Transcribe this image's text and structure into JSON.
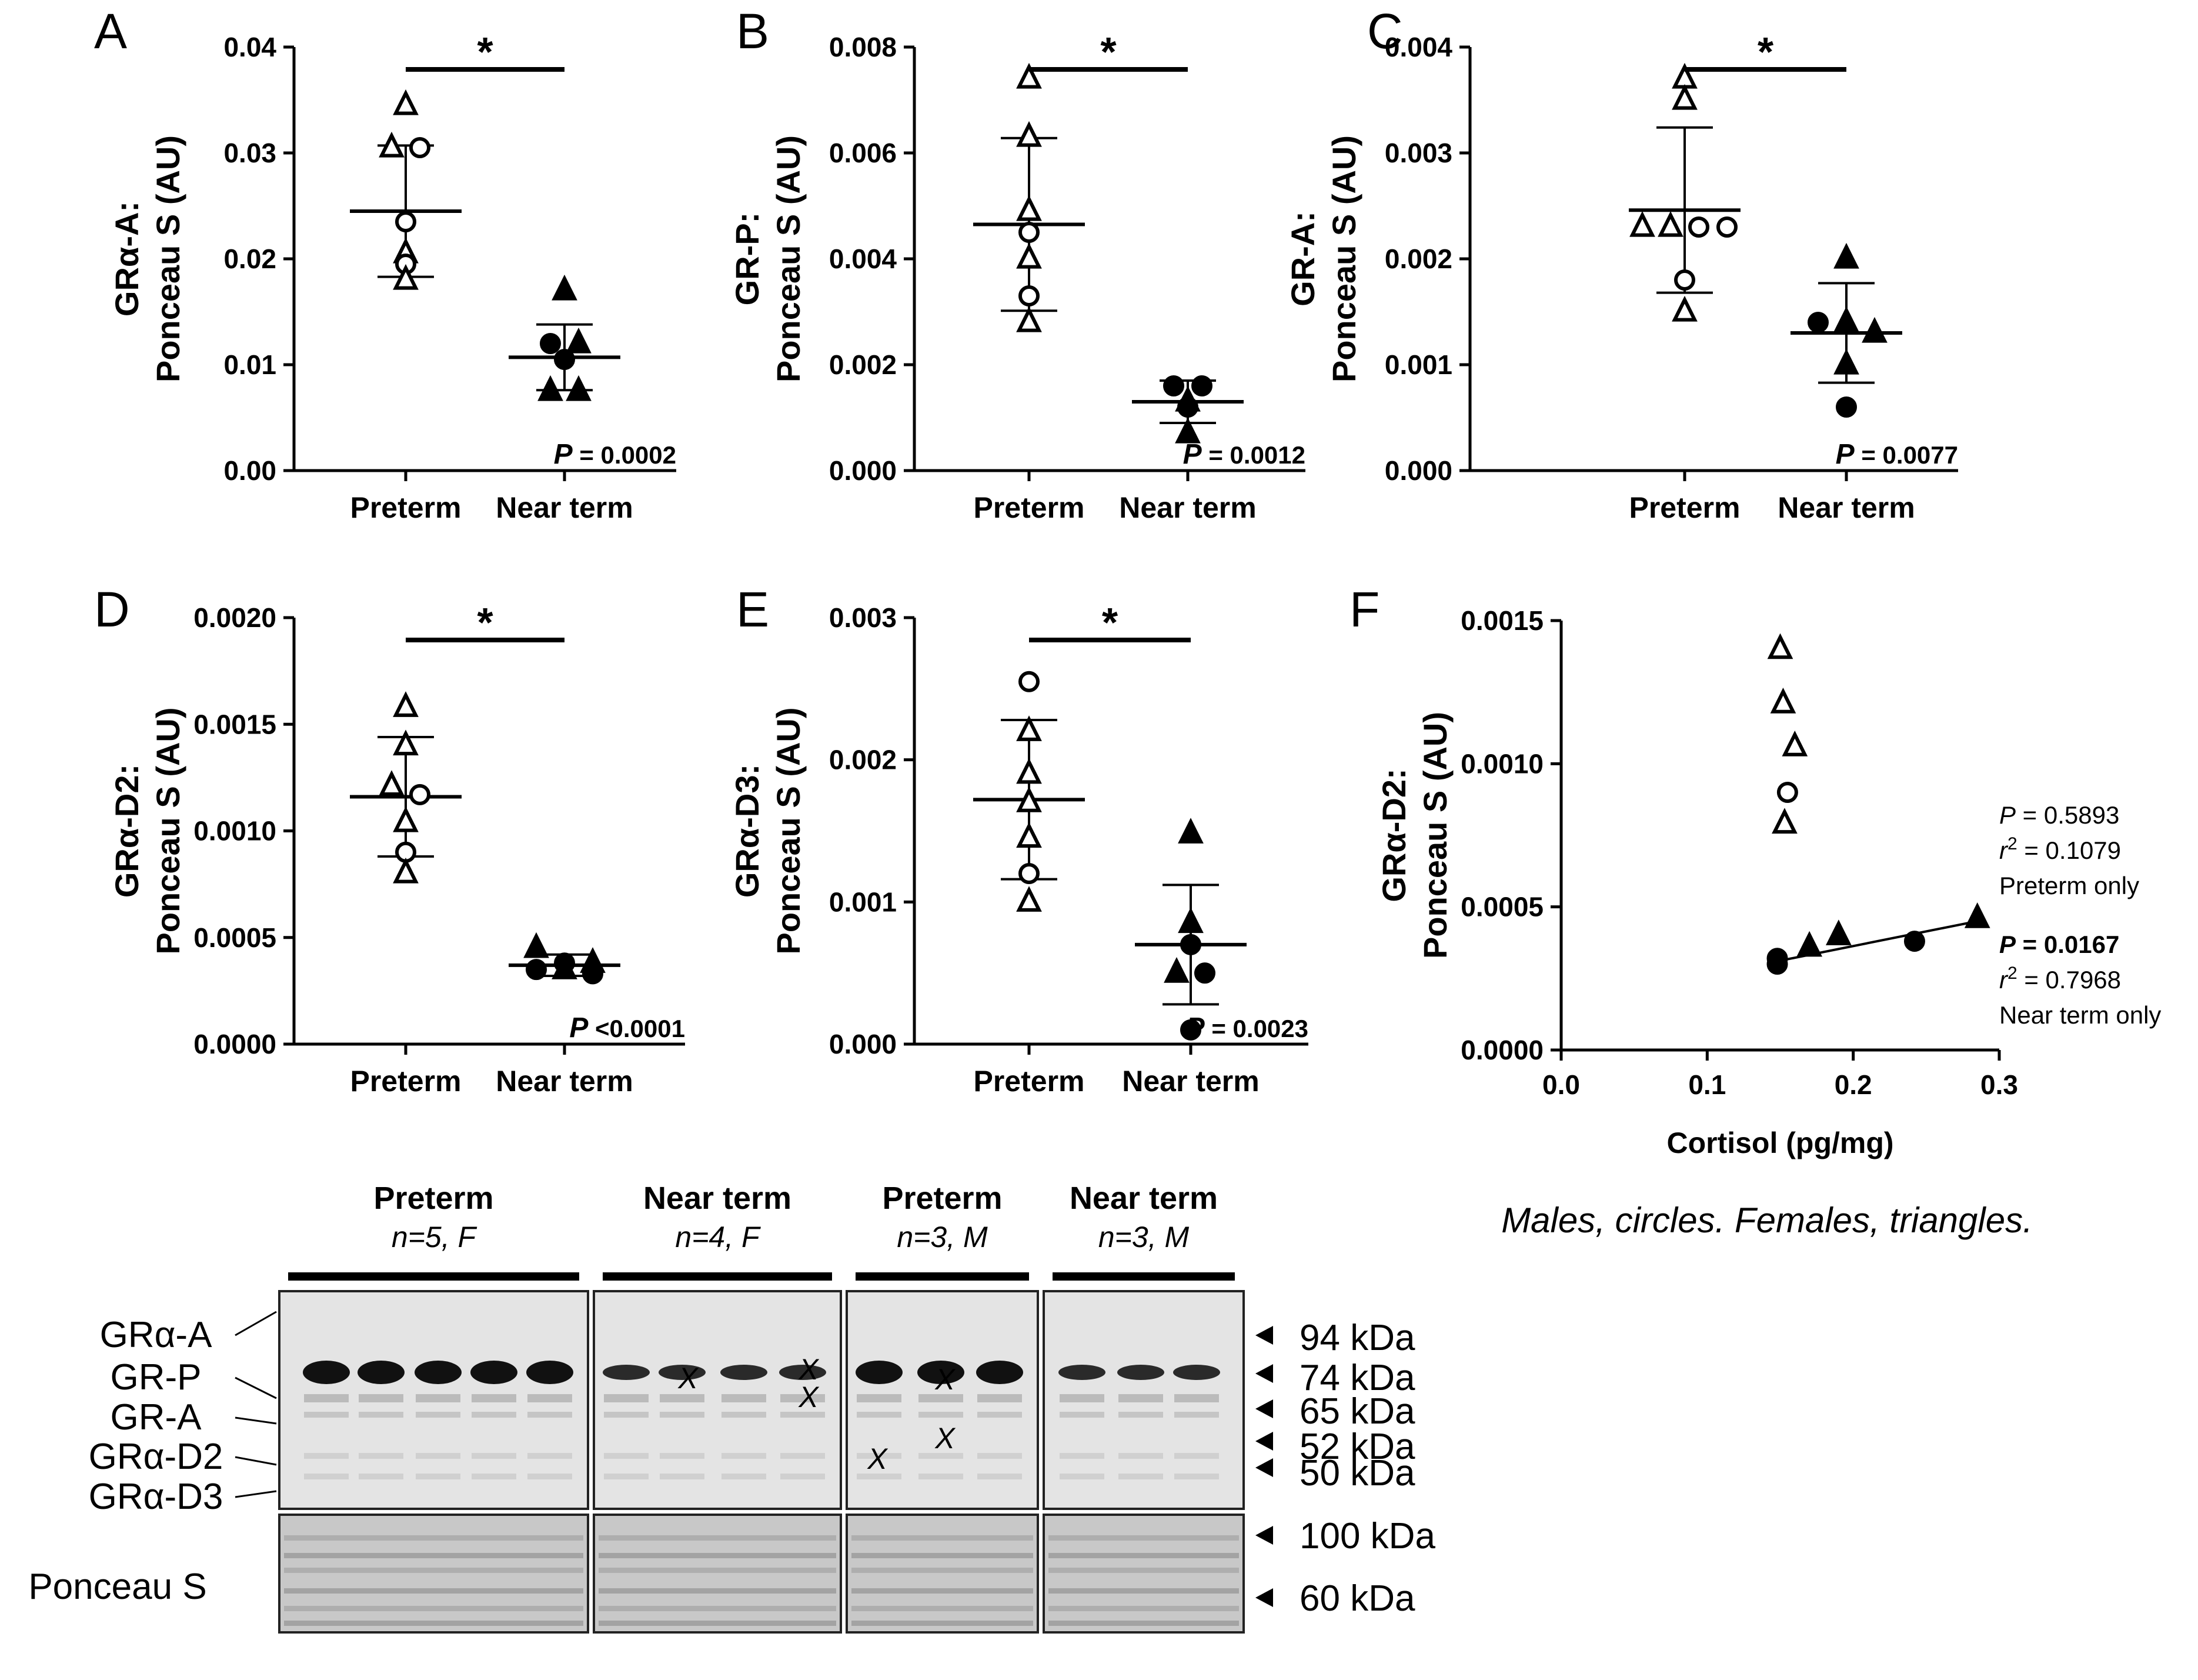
{
  "chart_data": [
    {
      "type": "scatter",
      "panel": "A",
      "title": "",
      "ylabel_line1": "GRα-A:",
      "ylabel_line2": "Ponceau S (AU)",
      "ylim": [
        0,
        0.04
      ],
      "yticks": [
        "0.00",
        "0.01",
        "0.02",
        "0.03",
        "0.04"
      ],
      "categories": [
        "Preterm",
        "Near term"
      ],
      "points": [
        {
          "group": 0,
          "value": 0.0345,
          "sex": "F"
        },
        {
          "group": 0,
          "value": 0.0305,
          "sex": "F"
        },
        {
          "group": 0,
          "value": 0.0305,
          "sex": "M"
        },
        {
          "group": 0,
          "value": 0.0235,
          "sex": "M"
        },
        {
          "group": 0,
          "value": 0.0205,
          "sex": "F"
        },
        {
          "group": 0,
          "value": 0.0195,
          "sex": "M"
        },
        {
          "group": 0,
          "value": 0.018,
          "sex": "F"
        },
        {
          "group": 1,
          "value": 0.017,
          "sex": "F"
        },
        {
          "group": 1,
          "value": 0.012,
          "sex": "M"
        },
        {
          "group": 1,
          "value": 0.012,
          "sex": "F"
        },
        {
          "group": 1,
          "value": 0.0105,
          "sex": "M"
        },
        {
          "group": 1,
          "value": 0.0075,
          "sex": "F"
        },
        {
          "group": 1,
          "value": 0.0075,
          "sex": "F"
        }
      ],
      "means": [
        0.0245,
        0.0107
      ],
      "sd": [
        0.0062,
        0.0031
      ],
      "significance": "*",
      "p_value_label": "P",
      "p_value_text": "= 0.0002"
    },
    {
      "type": "scatter",
      "panel": "B",
      "title": "",
      "ylabel_line1": "GR-P:",
      "ylabel_line2": "Ponceau S (AU)",
      "ylim": [
        0,
        0.008
      ],
      "yticks": [
        "0.000",
        "0.002",
        "0.004",
        "0.006",
        "0.008"
      ],
      "categories": [
        "Preterm",
        "Near term"
      ],
      "points": [
        {
          "group": 0,
          "value": 0.0074,
          "sex": "F"
        },
        {
          "group": 0,
          "value": 0.0063,
          "sex": "F"
        },
        {
          "group": 0,
          "value": 0.0049,
          "sex": "F"
        },
        {
          "group": 0,
          "value": 0.0045,
          "sex": "M"
        },
        {
          "group": 0,
          "value": 0.004,
          "sex": "F"
        },
        {
          "group": 0,
          "value": 0.0033,
          "sex": "M"
        },
        {
          "group": 0,
          "value": 0.0028,
          "sex": "F"
        },
        {
          "group": 1,
          "value": 0.0016,
          "sex": "M"
        },
        {
          "group": 1,
          "value": 0.0016,
          "sex": "M"
        },
        {
          "group": 1,
          "value": 0.0013,
          "sex": "F"
        },
        {
          "group": 1,
          "value": 0.0012,
          "sex": "M"
        },
        {
          "group": 1,
          "value": 0.0007,
          "sex": "F"
        }
      ],
      "means": [
        0.00465,
        0.0013
      ],
      "sd": [
        0.00163,
        0.0004
      ],
      "significance": "*",
      "p_value_label": "P",
      "p_value_text": "= 0.0012"
    },
    {
      "type": "scatter",
      "panel": "C",
      "title": "",
      "ylabel_line1": "GR-A:",
      "ylabel_line2": "Ponceau S (AU)",
      "ylim": [
        0,
        0.004
      ],
      "yticks": [
        "0.000",
        "0.001",
        "0.002",
        "0.003",
        "0.004"
      ],
      "categories": [
        "Preterm",
        "Near term"
      ],
      "points": [
        {
          "group": 0,
          "value": 0.0037,
          "sex": "F"
        },
        {
          "group": 0,
          "value": 0.0035,
          "sex": "F"
        },
        {
          "group": 0,
          "value": 0.0023,
          "sex": "F"
        },
        {
          "group": 0,
          "value": 0.0023,
          "sex": "F"
        },
        {
          "group": 0,
          "value": 0.0023,
          "sex": "M"
        },
        {
          "group": 0,
          "value": 0.0023,
          "sex": "M"
        },
        {
          "group": 0,
          "value": 0.0018,
          "sex": "M"
        },
        {
          "group": 0,
          "value": 0.0015,
          "sex": "F"
        },
        {
          "group": 1,
          "value": 0.002,
          "sex": "F"
        },
        {
          "group": 1,
          "value": 0.0014,
          "sex": "M"
        },
        {
          "group": 1,
          "value": 0.0014,
          "sex": "F"
        },
        {
          "group": 1,
          "value": 0.0013,
          "sex": "F"
        },
        {
          "group": 1,
          "value": 0.001,
          "sex": "F"
        },
        {
          "group": 1,
          "value": 0.0006,
          "sex": "M"
        }
      ],
      "means": [
        0.00246,
        0.0013
      ],
      "sd": [
        0.00078,
        0.00047
      ],
      "significance": "*",
      "p_value_label": "P",
      "p_value_text": "= 0.0077"
    },
    {
      "type": "scatter",
      "panel": "D",
      "title": "",
      "ylabel_line1": "GRα-D2:",
      "ylabel_line2": "Ponceau S (AU)",
      "ylim": [
        0,
        0.002
      ],
      "yticks": [
        "0.0000",
        "0.0005",
        "0.0010",
        "0.0015",
        "0.0020"
      ],
      "categories": [
        "Preterm",
        "Near term"
      ],
      "points": [
        {
          "group": 0,
          "value": 0.00158,
          "sex": "F"
        },
        {
          "group": 0,
          "value": 0.0014,
          "sex": "F"
        },
        {
          "group": 0,
          "value": 0.00121,
          "sex": "F"
        },
        {
          "group": 0,
          "value": 0.00117,
          "sex": "M"
        },
        {
          "group": 0,
          "value": 0.00104,
          "sex": "F"
        },
        {
          "group": 0,
          "value": 0.0009,
          "sex": "M"
        },
        {
          "group": 0,
          "value": 0.0008,
          "sex": "F"
        },
        {
          "group": 1,
          "value": 0.00045,
          "sex": "F"
        },
        {
          "group": 1,
          "value": 0.00038,
          "sex": "M"
        },
        {
          "group": 1,
          "value": 0.00038,
          "sex": "F"
        },
        {
          "group": 1,
          "value": 0.00035,
          "sex": "M"
        },
        {
          "group": 1,
          "value": 0.00035,
          "sex": "F"
        },
        {
          "group": 1,
          "value": 0.00033,
          "sex": "M"
        }
      ],
      "means": [
        0.00116,
        0.00037
      ],
      "sd": [
        0.00028,
        5e-05
      ],
      "significance": "*",
      "p_value_label": "P",
      "p_value_text": "<0.0001"
    },
    {
      "type": "scatter",
      "panel": "E",
      "title": "",
      "ylabel_line1": "GRα-D3:",
      "ylabel_line2": "Ponceau S (AU)",
      "ylim": [
        0,
        0.003
      ],
      "yticks": [
        "0.000",
        "0.001",
        "0.002",
        "0.003"
      ],
      "categories": [
        "Preterm",
        "Near term"
      ],
      "points": [
        {
          "group": 0,
          "value": 0.00255,
          "sex": "M"
        },
        {
          "group": 0,
          "value": 0.0022,
          "sex": "F"
        },
        {
          "group": 0,
          "value": 0.0019,
          "sex": "F"
        },
        {
          "group": 0,
          "value": 0.0017,
          "sex": "F"
        },
        {
          "group": 0,
          "value": 0.00145,
          "sex": "F"
        },
        {
          "group": 0,
          "value": 0.0012,
          "sex": "M"
        },
        {
          "group": 0,
          "value": 0.001,
          "sex": "F"
        },
        {
          "group": 1,
          "value": 0.00148,
          "sex": "F"
        },
        {
          "group": 1,
          "value": 0.00085,
          "sex": "F"
        },
        {
          "group": 1,
          "value": 0.0007,
          "sex": "M"
        },
        {
          "group": 1,
          "value": 0.0005,
          "sex": "F"
        },
        {
          "group": 1,
          "value": 0.0005,
          "sex": "M"
        },
        {
          "group": 1,
          "value": 0.0001,
          "sex": "M"
        }
      ],
      "means": [
        0.00172,
        0.0007
      ],
      "sd": [
        0.00056,
        0.00042
      ],
      "significance": "*",
      "p_value_label": "P",
      "p_value_text": "= 0.0023"
    },
    {
      "type": "scatter",
      "panel": "F",
      "title": "",
      "ylabel_line1": "GRα-D2:",
      "ylabel_line2": "Ponceau S (AU)",
      "xlabel": "Cortisol (pg/mg)",
      "xlim": [
        0,
        0.3
      ],
      "xticks": [
        "0.0",
        "0.1",
        "0.2",
        "0.3"
      ],
      "ylim": [
        0,
        0.0015
      ],
      "yticks": [
        "0.0000",
        "0.0005",
        "0.0010",
        "0.0015"
      ],
      "series": [
        {
          "name": "Preterm",
          "fill": false,
          "points": [
            {
              "x": 0.15,
              "y": 0.0014,
              "sex": "F"
            },
            {
              "x": 0.152,
              "y": 0.00121,
              "sex": "F"
            },
            {
              "x": 0.16,
              "y": 0.00106,
              "sex": "F"
            },
            {
              "x": 0.155,
              "y": 0.0009,
              "sex": "M"
            },
            {
              "x": 0.153,
              "y": 0.00079,
              "sex": "F"
            }
          ]
        },
        {
          "name": "Near term",
          "fill": true,
          "points": [
            {
              "x": 0.148,
              "y": 0.00032,
              "sex": "M"
            },
            {
              "x": 0.148,
              "y": 0.0003,
              "sex": "M"
            },
            {
              "x": 0.17,
              "y": 0.00036,
              "sex": "F"
            },
            {
              "x": 0.19,
              "y": 0.0004,
              "sex": "F"
            },
            {
              "x": 0.242,
              "y": 0.00038,
              "sex": "M"
            },
            {
              "x": 0.285,
              "y": 0.00046,
              "sex": "F"
            }
          ]
        }
      ],
      "fit_line": {
        "x": [
          0.148,
          0.285
        ],
        "y": [
          0.00031,
          0.00045
        ]
      },
      "stats": [
        {
          "p_label": "P",
          "p_value": "= 0.5893",
          "r2_label": "r",
          "r2_sup": "2",
          "r2_value": "= 0.1079",
          "group": "Preterm only"
        },
        {
          "p_label": "P",
          "p_value": "= 0.0167",
          "r2_label": "r",
          "r2_sup": "2",
          "r2_value": "= 0.7968",
          "group": "Near term only"
        }
      ]
    }
  ],
  "blot": {
    "groups": [
      {
        "name": "Preterm",
        "detail": "n=5, F"
      },
      {
        "name": "Near term",
        "detail": "n=4, F"
      },
      {
        "name": "Preterm",
        "detail": "n=3, M"
      },
      {
        "name": "Near term",
        "detail": "n=3, M"
      }
    ],
    "band_labels": [
      "GRα-A",
      "GR-P",
      "GR-A",
      "GRα-D2",
      "GRα-D3"
    ],
    "markers_top": [
      "94 kDa",
      "74 kDa",
      "65 kDa",
      "52 kDa",
      "50 kDa"
    ],
    "markers_bottom": [
      "100 kDa",
      "60 kDa"
    ],
    "ponceau_label": "Ponceau S",
    "excluded_mark": "X"
  },
  "legend_text": "Males, circles. Females, triangles.",
  "colors": {
    "ink": "#000000",
    "blot_bg": "#e4e4e4",
    "ponceau_bg": "#c8c8c8"
  }
}
